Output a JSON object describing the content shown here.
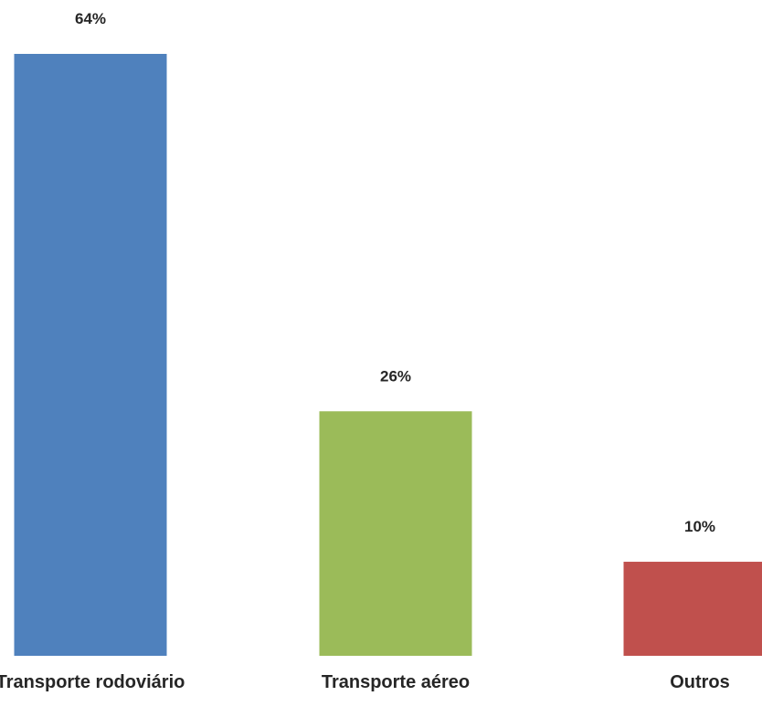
{
  "chart_data": {
    "type": "bar",
    "categories": [
      "Transporte rodoviário",
      "Transporte aéreo",
      "Outros"
    ],
    "values": [
      64,
      26,
      10
    ],
    "data_labels": [
      "64%",
      "26%",
      "10%"
    ],
    "colors": [
      "#4F81BD",
      "#9BBB59",
      "#C0504D"
    ],
    "title": "",
    "xlabel": "",
    "ylabel": "",
    "ylim": [
      0,
      64
    ],
    "grid": false,
    "legend": "none"
  }
}
